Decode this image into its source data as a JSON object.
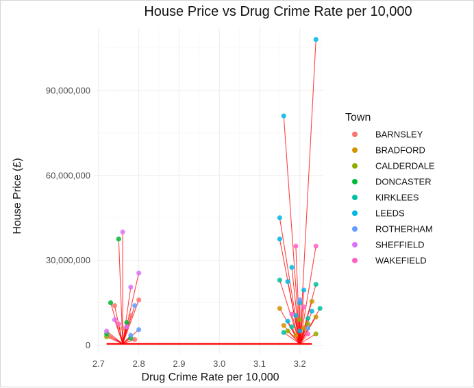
{
  "chart_data": {
    "type": "scatter",
    "title": "House Price vs Drug Crime Rate per 10,000",
    "xlabel": "Drug Crime Rate per 10,000",
    "ylabel": "House Price (£)",
    "xlim": [
      2.69,
      3.26
    ],
    "ylim": [
      -3000000,
      112000000
    ],
    "x_ticks": [
      2.7,
      2.8,
      2.9,
      3.0,
      3.1,
      3.2
    ],
    "x_tick_labels": [
      "2.7",
      "2.8",
      "2.9",
      "3.0",
      "3.1",
      "3.2"
    ],
    "y_ticks": [
      0,
      30000000,
      60000000,
      90000000
    ],
    "y_tick_labels": [
      "0",
      "30,000,000",
      "60,000,000",
      "90,000,000"
    ],
    "grid": true,
    "legend_title": "Town",
    "legend_position": "right",
    "trend_color": "#ff0000",
    "trend_line": {
      "x": [
        2.72,
        3.23
      ],
      "y": [
        500000,
        500000
      ]
    },
    "series": [
      {
        "name": "BARNSLEY",
        "color": "#F8766D",
        "points": [
          [
            2.74,
            14000000
          ],
          [
            2.78,
            10500000
          ],
          [
            2.8,
            16000000
          ],
          [
            2.76,
            6000000
          ],
          [
            2.73,
            3000000
          ],
          [
            2.79,
            2000000
          ]
        ]
      },
      {
        "name": "BRADFORD",
        "color": "#D39200",
        "points": [
          [
            3.15,
            13000000
          ],
          [
            3.23,
            15500000
          ],
          [
            3.16,
            7000000
          ],
          [
            3.21,
            6000000
          ],
          [
            3.24,
            10000000
          ],
          [
            3.19,
            3500000
          ]
        ]
      },
      {
        "name": "CALDERDALE",
        "color": "#93AA00",
        "points": [
          [
            3.2,
            9000000
          ],
          [
            3.17,
            5000000
          ],
          [
            3.22,
            7500000
          ],
          [
            2.72,
            3000000
          ],
          [
            3.24,
            4000000
          ]
        ]
      },
      {
        "name": "DONCASTER",
        "color": "#00BA38",
        "points": [
          [
            2.75,
            37500000
          ],
          [
            2.73,
            15000000
          ],
          [
            2.77,
            8000000
          ],
          [
            2.72,
            4000000
          ],
          [
            2.78,
            2500000
          ]
        ]
      },
      {
        "name": "KIRKLEES",
        "color": "#00C19F",
        "points": [
          [
            3.15,
            23000000
          ],
          [
            3.24,
            21500000
          ],
          [
            3.25,
            13000000
          ],
          [
            3.22,
            9500000
          ],
          [
            3.18,
            6500000
          ],
          [
            3.16,
            4500000
          ]
        ]
      },
      {
        "name": "LEEDS",
        "color": "#00B9E3",
        "points": [
          [
            3.24,
            108000000
          ],
          [
            3.16,
            81000000
          ],
          [
            3.15,
            45000000
          ],
          [
            3.15,
            37500000
          ],
          [
            3.18,
            27500000
          ],
          [
            3.17,
            22500000
          ],
          [
            3.21,
            19500000
          ],
          [
            3.2,
            15000000
          ],
          [
            3.23,
            12000000
          ],
          [
            3.19,
            10500000
          ],
          [
            3.17,
            8500000
          ],
          [
            3.2,
            5000000
          ]
        ]
      },
      {
        "name": "ROTHERHAM",
        "color": "#619CFF",
        "points": [
          [
            2.79,
            14000000
          ],
          [
            2.8,
            5500000
          ],
          [
            2.78,
            3500000
          ],
          [
            3.2,
            16000000
          ],
          [
            3.22,
            6000000
          ]
        ]
      },
      {
        "name": "SHEFFIELD",
        "color": "#DB72FB",
        "points": [
          [
            2.76,
            40000000
          ],
          [
            2.8,
            25500000
          ],
          [
            2.78,
            20500000
          ],
          [
            2.74,
            9000000
          ],
          [
            2.72,
            5000000
          ],
          [
            2.77,
            6500000
          ]
        ]
      },
      {
        "name": "WAKEFIELD",
        "color": "#FF61C3",
        "points": [
          [
            3.19,
            35000000
          ],
          [
            3.24,
            35000000
          ],
          [
            3.21,
            13500000
          ],
          [
            3.18,
            11000000
          ],
          [
            3.22,
            4000000
          ],
          [
            2.75,
            7500000
          ]
        ]
      }
    ]
  }
}
